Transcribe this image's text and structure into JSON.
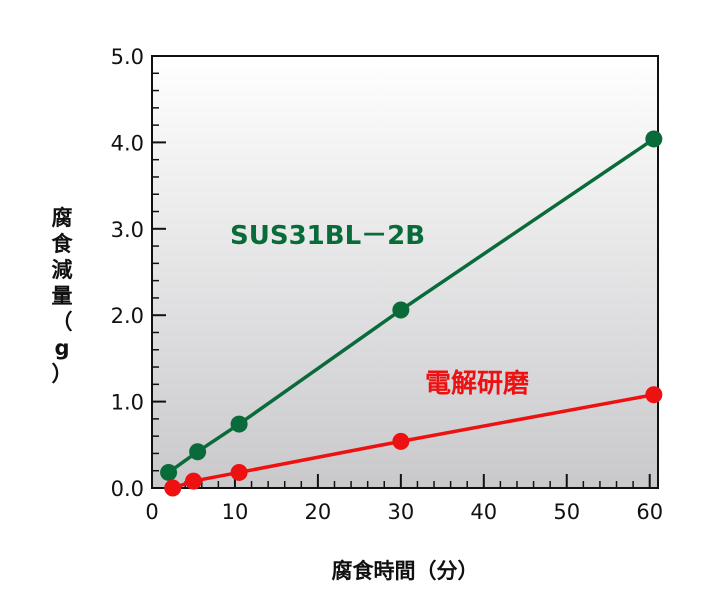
{
  "chart_data": {
    "type": "line",
    "xlabel": "腐食時間（分）",
    "ylabel": "腐食減量（g）",
    "xlim": [
      0,
      61
    ],
    "ylim": [
      0,
      5
    ],
    "x_ticks": [
      "0",
      "10",
      "20",
      "30",
      "40",
      "50",
      "60"
    ],
    "y_ticks": [
      "0.0",
      "1.0",
      "2.0",
      "3.0",
      "4.0",
      "5.0"
    ],
    "grid": false,
    "series": [
      {
        "name": "SUS31BL－2B",
        "color": "#0a6b3a",
        "x": [
          2,
          5.5,
          10.5,
          30,
          60.5
        ],
        "y": [
          0.18,
          0.42,
          0.74,
          2.06,
          4.04
        ]
      },
      {
        "name": "電解研磨",
        "color": "#ee1111",
        "x": [
          2.5,
          5,
          10.5,
          30,
          60.5
        ],
        "y": [
          0.0,
          0.08,
          0.18,
          0.54,
          1.08
        ]
      }
    ]
  }
}
